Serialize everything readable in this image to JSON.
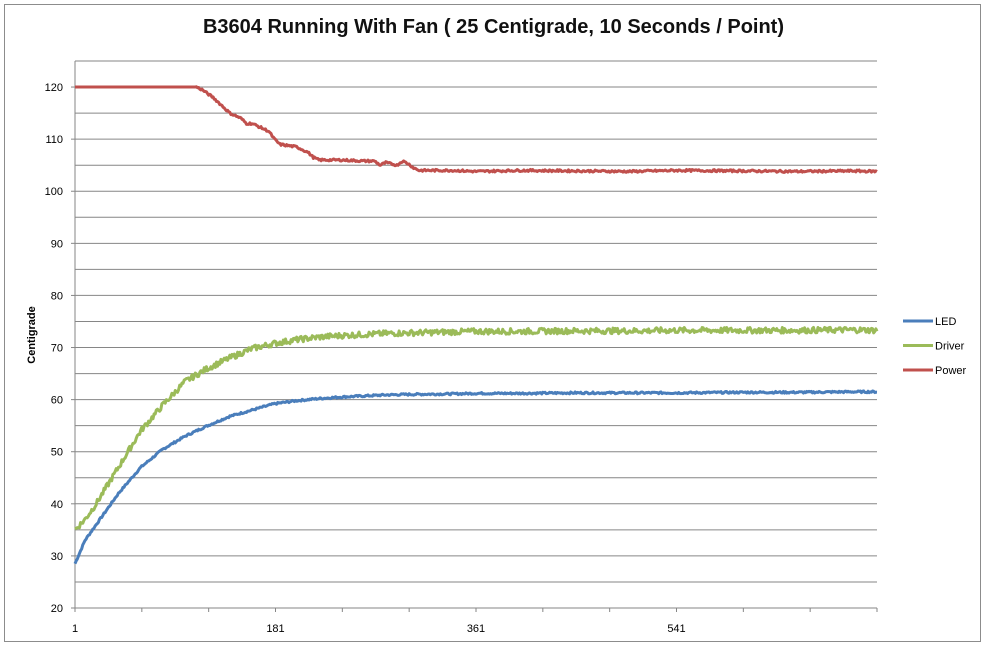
{
  "chart_data": {
    "type": "line",
    "title": "B3604 Running With Fan ( 25 Centigrade, 10 Seconds / Point)",
    "xlabel": "",
    "ylabel": "Centigrade",
    "ylim": [
      20,
      125
    ],
    "yticks": [
      20,
      30,
      40,
      50,
      60,
      70,
      80,
      90,
      100,
      110,
      120
    ],
    "xlim": [
      1,
      721
    ],
    "xticks": [
      1,
      181,
      361,
      541
    ],
    "grid": true,
    "legend": "right",
    "series": [
      {
        "name": "LED",
        "color": "#4a7ebb",
        "x": [
          1,
          10,
          20,
          40,
          60,
          80,
          100,
          120,
          140,
          160,
          180,
          200,
          220,
          240,
          260,
          280,
          300,
          340,
          361,
          400,
          450,
          500,
          541,
          600,
          650,
          700,
          721
        ],
        "y": [
          28.5,
          33,
          36,
          42,
          47,
          50.5,
          53,
          55,
          56.8,
          58,
          59.2,
          59.8,
          60.2,
          60.5,
          60.7,
          60.9,
          61,
          61.1,
          61.2,
          61.2,
          61.3,
          61.3,
          61.3,
          61.4,
          61.4,
          61.5,
          61.5
        ]
      },
      {
        "name": "Driver",
        "color": "#9bbb59",
        "x": [
          1,
          10,
          20,
          40,
          60,
          80,
          100,
          120,
          140,
          160,
          180,
          200,
          220,
          240,
          260,
          280,
          300,
          340,
          361,
          400,
          450,
          500,
          541,
          600,
          650,
          700,
          721
        ],
        "y": [
          35,
          37,
          40,
          47,
          54,
          59,
          63.5,
          66,
          68,
          69.8,
          70.8,
          71.5,
          72,
          72.3,
          72.5,
          72.7,
          72.8,
          73,
          73.1,
          73.1,
          73.2,
          73.2,
          73.3,
          73.3,
          73.3,
          73.4,
          73.3
        ]
      },
      {
        "name": "Power",
        "color": "#c0504d",
        "x": [
          1,
          110,
          115,
          125,
          130,
          140,
          150,
          155,
          160,
          170,
          175,
          180,
          185,
          200,
          210,
          215,
          220,
          240,
          260,
          270,
          275,
          280,
          290,
          295,
          300,
          305,
          310,
          320,
          340,
          361,
          400,
          450,
          500,
          541,
          600,
          650,
          700,
          721
        ],
        "y": [
          120,
          120,
          119.5,
          118,
          117,
          115,
          114,
          113,
          113,
          112,
          111.5,
          110,
          109,
          108.5,
          107.5,
          106.5,
          106,
          106,
          105.8,
          105.8,
          105,
          105.5,
          105,
          105.8,
          105.3,
          104.5,
          104,
          104,
          104,
          103.8,
          104,
          103.9,
          103.8,
          104,
          103.9,
          103.8,
          103.9,
          103.8
        ]
      }
    ]
  }
}
